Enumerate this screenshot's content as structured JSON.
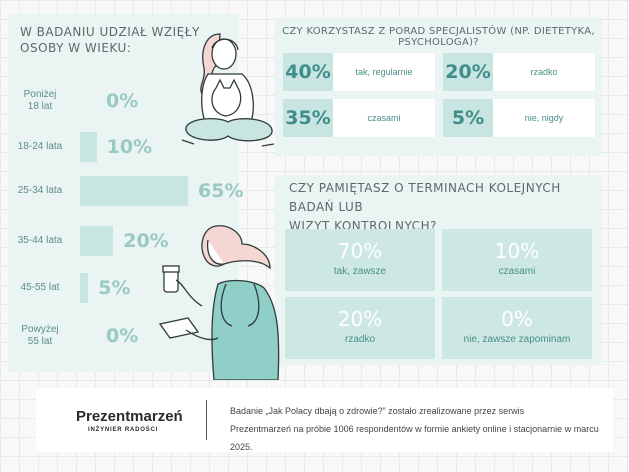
{
  "age_section": {
    "title": "W BADANIU UDZIAŁ WZIĘŁY OSOBY W WIEKU:"
  },
  "specialist_section": {
    "title": "CZY KORZYSTASZ Z PORAD SPECJALISTÓW (NP. DIETETYKA, PSYCHOLOGA)?",
    "items": [
      {
        "pct": "40%",
        "label": "tak, regularnie"
      },
      {
        "pct": "20%",
        "label": "rzadko"
      },
      {
        "pct": "35%",
        "label": "czasami"
      },
      {
        "pct": "5%",
        "label": "nie, nigdy"
      }
    ]
  },
  "checkup_section": {
    "title_line1": "CZY PAMIĘTASZ O TERMINACH KOLEJNYCH BADAŃ LUB",
    "title_line2": "WIZYT KONTROLNYCH?",
    "items": [
      {
        "pct": "70%",
        "label": "tak, zawsze"
      },
      {
        "pct": "10%",
        "label": "czasami"
      },
      {
        "pct": "20%",
        "label": "rzadko"
      },
      {
        "pct": "0%",
        "label": "nie, zawsze zapominam"
      }
    ]
  },
  "footer": {
    "logo_text": "Prezentmarzeń",
    "logo_subtitle": "INŻYNIER RADOŚCI",
    "note_line1": "Badanie „Jak Polacy dbają o zdrowie?” zostało zrealizowane przez serwis",
    "note_line2": "Prezentmarzeń na próbie 1006 respondentów w formie ankiety online i stacjonarnie w marcu 2025."
  },
  "colors": {
    "panel_bg": "#eaf4f2",
    "bar_fill": "#c9e5e1",
    "value_text": "#9bc9c4",
    "accent_dark": "#3f8e89",
    "label_text": "#5d8d8b"
  },
  "chart_data": [
    {
      "type": "bar",
      "title": "W BADANIU UDZIAŁ WZIĘŁY OSOBY W WIEKU:",
      "orientation": "horizontal",
      "categories": [
        "Poniżej 18 lat",
        "18-24 lata",
        "25-34 lata",
        "35-44 lata",
        "45-55 lat",
        "Powyżej 55 lat"
      ],
      "category_lines": [
        [
          "Poniżej",
          "18 lat"
        ],
        [
          "18-24 lata"
        ],
        [
          "25-34 lata"
        ],
        [
          "35-44 lata"
        ],
        [
          "45-55 lat"
        ],
        [
          "Powyżej",
          "55 lat"
        ]
      ],
      "values": [
        0,
        10,
        65,
        20,
        5,
        0
      ],
      "value_labels": [
        "0%",
        "10%",
        "65%",
        "20%",
        "5%",
        "0%"
      ],
      "unit": "%",
      "xlim": [
        0,
        65
      ]
    },
    {
      "type": "table",
      "title": "CZY KORZYSTASZ Z PORAD SPECJALISTÓW (NP. DIETETYKA, PSYCHOLOGA)?",
      "categories": [
        "tak, regularnie",
        "rzadko",
        "czasami",
        "nie, nigdy"
      ],
      "values": [
        40,
        20,
        35,
        5
      ],
      "unit": "%"
    },
    {
      "type": "table",
      "title": "CZY PAMIĘTASZ O TERMINACH KOLEJNYCH BADAŃ LUB WIZYT KONTROLNYCH?",
      "categories": [
        "tak, zawsze",
        "czasami",
        "rzadko",
        "nie, zawsze zapominam"
      ],
      "values": [
        70,
        10,
        20,
        0
      ],
      "unit": "%"
    }
  ]
}
